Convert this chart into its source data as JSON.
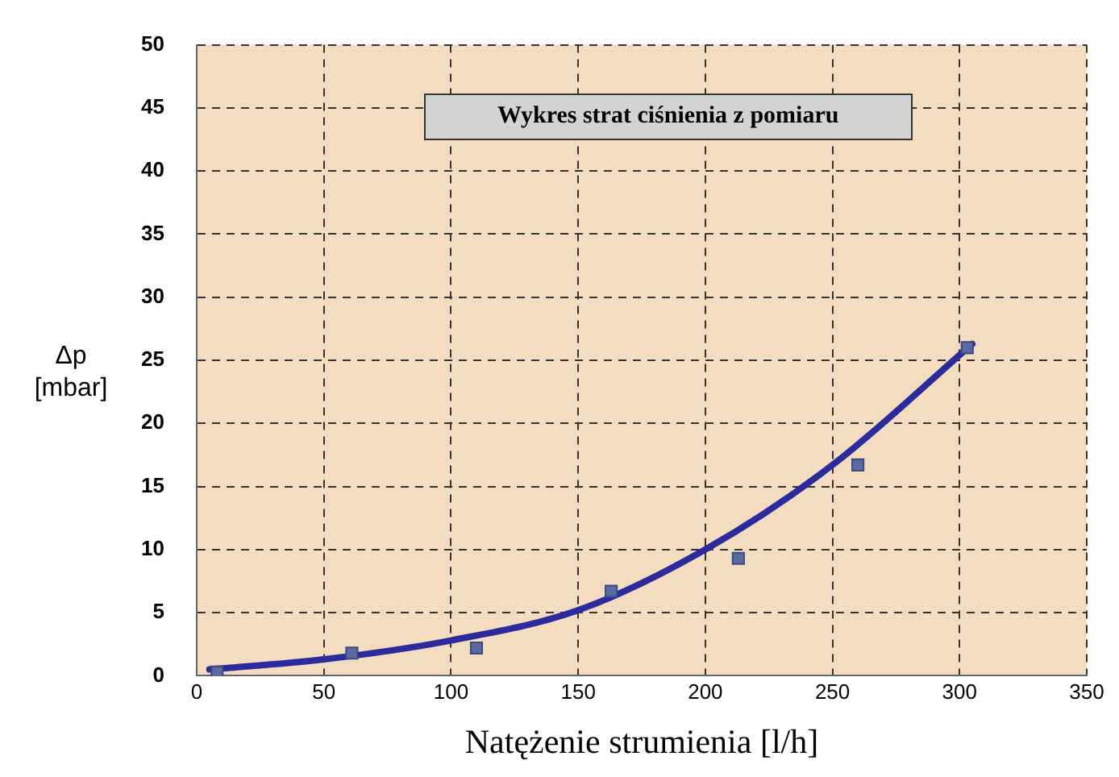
{
  "chart_data": {
    "type": "scatter",
    "title": "Wykres strat ciśnienia z pomiaru",
    "xlabel": "Natężenie strumienia [l/h]",
    "ylabel": "Δp [mbar]",
    "xlim": [
      0,
      350
    ],
    "xticks": [
      0,
      50,
      100,
      150,
      200,
      250,
      300,
      350
    ],
    "ylim": [
      0,
      50
    ],
    "yticks": [
      0,
      5,
      10,
      15,
      20,
      25,
      30,
      35,
      40,
      45,
      50
    ],
    "grid": true,
    "marker": "square",
    "series": [
      {
        "type": "scatter",
        "color": "#5a6aa0",
        "x": [
          8,
          61,
          110,
          163,
          213,
          260,
          303
        ],
        "values": [
          0.3,
          1.8,
          2.2,
          6.7,
          9.3,
          16.7,
          26
        ]
      },
      {
        "type": "line",
        "color": "#2b2b9e",
        "marker": "none",
        "x": [
          5,
          50,
          100,
          150,
          200,
          250,
          305
        ],
        "values": [
          0.5,
          1.3,
          2.8,
          5.2,
          10,
          16.7,
          26.3
        ]
      }
    ]
  }
}
